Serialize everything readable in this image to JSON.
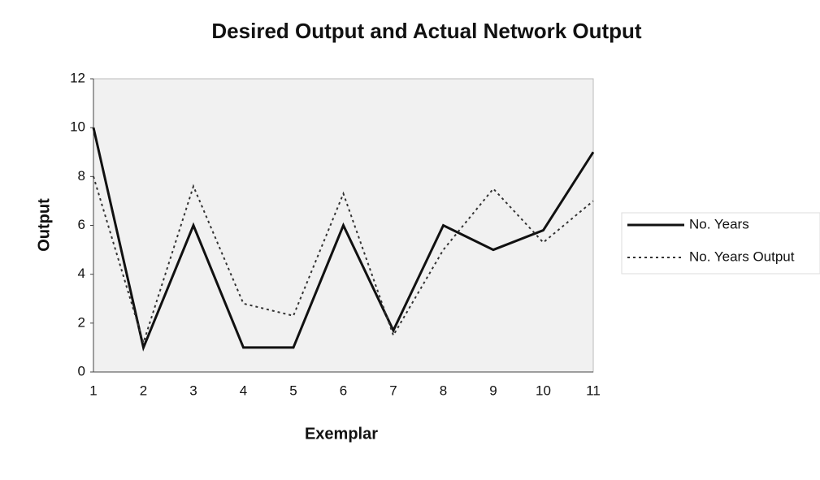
{
  "chart_data": {
    "type": "line",
    "title": "Desired Output and Actual Network Output",
    "xlabel": "Exemplar",
    "ylabel": "Output",
    "categories": [
      "1",
      "2",
      "3",
      "4",
      "5",
      "6",
      "7",
      "8",
      "9",
      "10",
      "11"
    ],
    "series": [
      {
        "name": "No. Years",
        "color": "#111111",
        "style": "solid",
        "values": [
          10,
          1,
          6,
          1,
          1,
          6,
          1.7,
          6,
          5,
          5.8,
          9
        ]
      },
      {
        "name": "No. Years Output",
        "color": "#333333",
        "style": "dotted",
        "values": [
          8,
          1.2,
          7.6,
          2.8,
          2.3,
          7.3,
          1.5,
          5,
          7.5,
          5.3,
          7
        ]
      }
    ],
    "ylim": [
      0,
      12
    ],
    "yticks": [
      0,
      2,
      4,
      6,
      8,
      10,
      12
    ],
    "legend": "right"
  }
}
